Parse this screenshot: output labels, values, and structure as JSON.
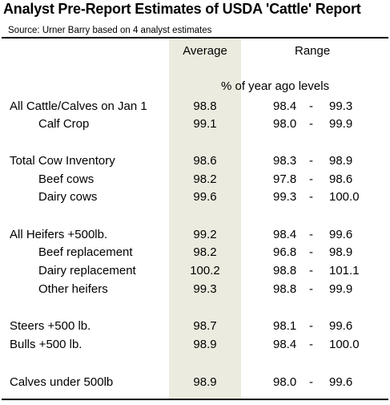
{
  "title": "Analyst Pre-Report Estimates of USDA 'Cattle' Report",
  "source": "Source:  Urner Barry based on 4 analyst estimates",
  "headers": {
    "average": "Average",
    "range": "Range",
    "units": "% of year ago levels"
  },
  "rows": [
    {
      "label": "All Cattle/Calves on Jan 1",
      "average": "98.8",
      "low": "98.4",
      "dash": "-",
      "high": "99.3"
    },
    {
      "label": "Calf Crop",
      "average": "99.1",
      "low": "98.0",
      "dash": "-",
      "high": "99.9"
    },
    {
      "label": "Total Cow Inventory",
      "average": "98.6",
      "low": "98.3",
      "dash": "-",
      "high": "98.9"
    },
    {
      "label": "Beef cows",
      "average": "98.2",
      "low": "97.8",
      "dash": "-",
      "high": "98.6"
    },
    {
      "label": "Dairy cows",
      "average": "99.6",
      "low": "99.3",
      "dash": "-",
      "high": "100.0"
    },
    {
      "label": "All Heifers +500lb.",
      "average": "99.2",
      "low": "98.4",
      "dash": "-",
      "high": "99.6"
    },
    {
      "label": "Beef replacement",
      "average": "98.2",
      "low": "96.8",
      "dash": "-",
      "high": "98.9"
    },
    {
      "label": "Dairy replacement",
      "average": "100.2",
      "low": "98.8",
      "dash": "-",
      "high": "101.1"
    },
    {
      "label": "Other heifers",
      "average": "99.3",
      "low": "98.8",
      "dash": "-",
      "high": "99.9"
    },
    {
      "label": "Steers +500 lb.",
      "average": "98.7",
      "low": "98.1",
      "dash": "-",
      "high": "99.6"
    },
    {
      "label": "Bulls +500 lb.",
      "average": "98.9",
      "low": "98.4",
      "dash": "-",
      "high": "100.0"
    },
    {
      "label": "Calves under 500lb",
      "average": "98.9",
      "low": "98.0",
      "dash": "-",
      "high": "99.6"
    }
  ]
}
